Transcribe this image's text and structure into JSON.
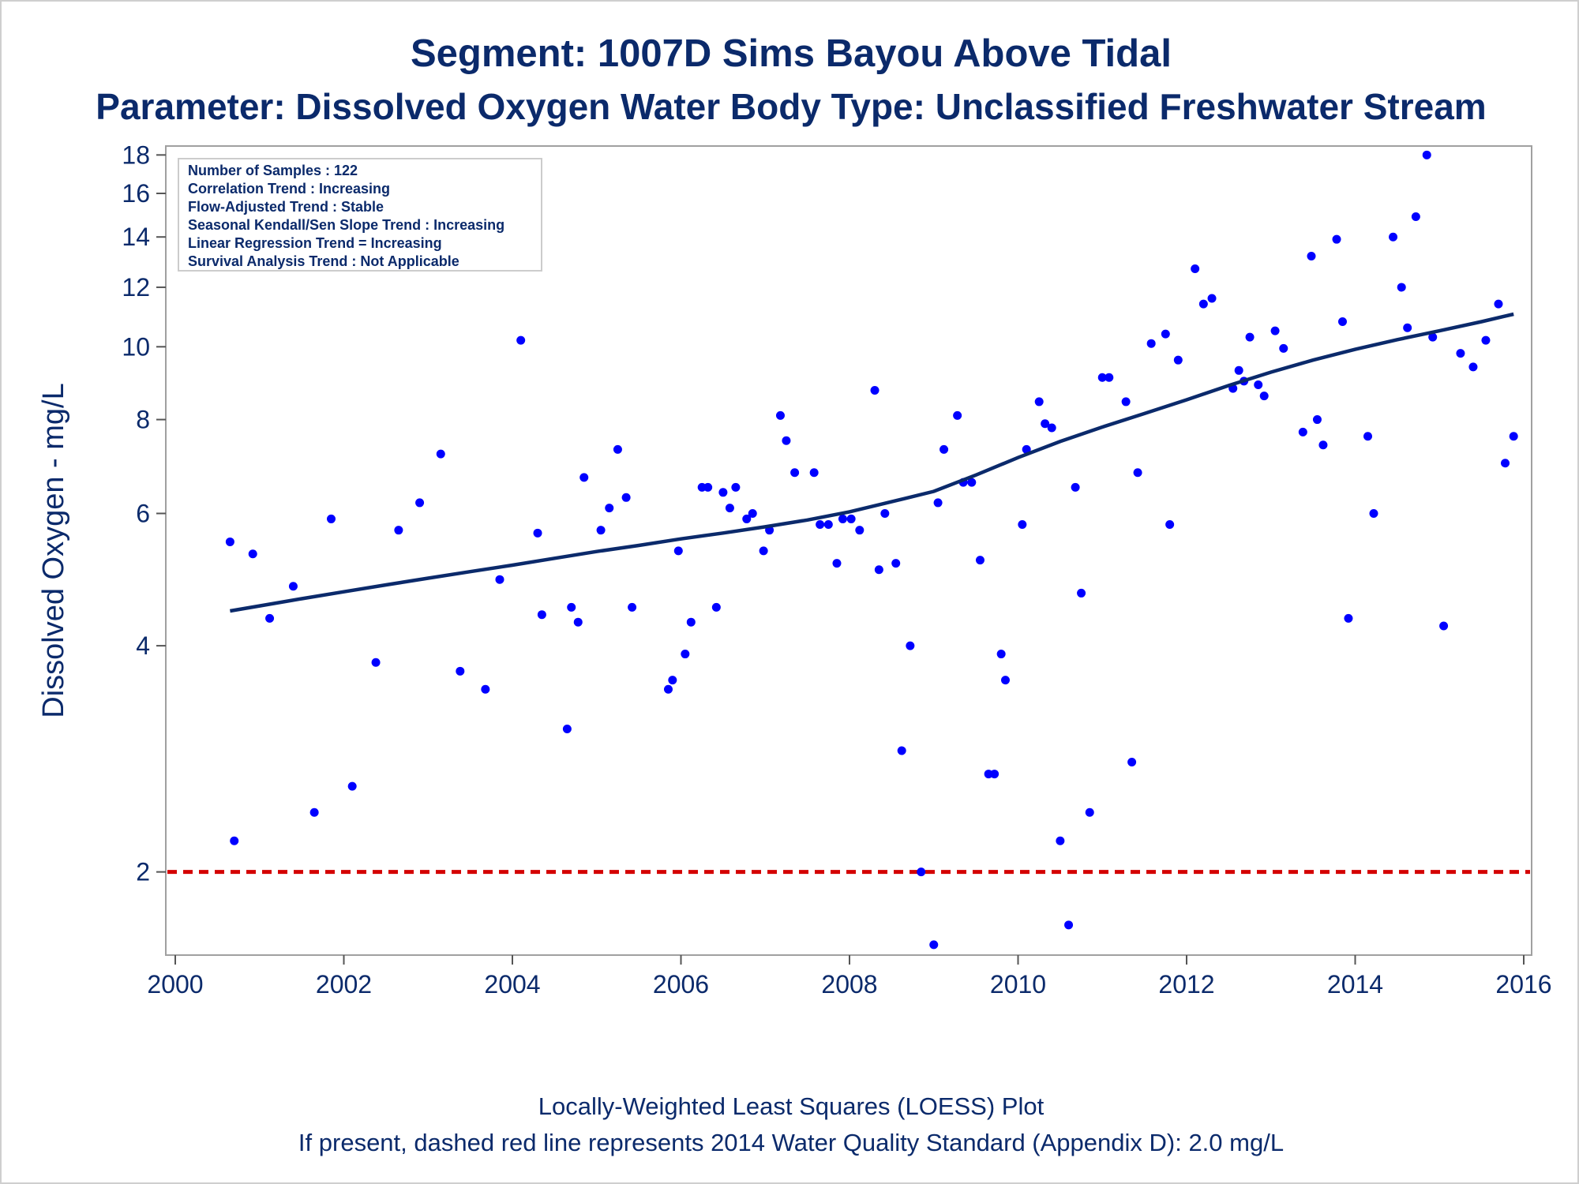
{
  "titles": {
    "line1": "Segment: 1007D  Sims Bayou Above Tidal",
    "line2": "Parameter: Dissolved Oxygen   Water Body Type: Unclassified Freshwater Stream"
  },
  "footnotes": {
    "line1": "Locally-Weighted Least Squares (LOESS) Plot",
    "line2": "If present, dashed red line represents 2014 Water Quality Standard (Appendix D): 2.0 mg/L"
  },
  "stats_box": [
    "Number of Samples : 122",
    "Correlation Trend : Increasing",
    "Flow-Adjusted Trend : Stable",
    "Seasonal Kendall/Sen Slope Trend : Increasing",
    "Linear Regression Trend = Increasing",
    "Survival Analysis Trend : Not Applicable"
  ],
  "colors": {
    "points": "#0000ff",
    "loess": "#0b2a6b",
    "standard": "#d40000",
    "text": "#0b2a6b",
    "frame": "#a0a0a0"
  },
  "chart_data": {
    "type": "scatter",
    "title": "Segment: 1007D  Sims Bayou Above Tidal",
    "subtitle": "Parameter: Dissolved Oxygen   Water Body Type: Unclassified Freshwater Stream",
    "xlabel": "",
    "ylabel": "Dissolved Oxygen - mg/L",
    "xlim": [
      2000,
      2016
    ],
    "ylim": [
      1.55,
      18.5
    ],
    "y_scale": "log",
    "x_ticks": [
      2000,
      2002,
      2004,
      2006,
      2008,
      2010,
      2012,
      2014,
      2016
    ],
    "y_ticks": [
      2,
      4,
      6,
      8,
      10,
      12,
      14,
      16,
      18
    ],
    "grid": false,
    "standard_line": {
      "y": 2.0,
      "style": "dashed"
    },
    "points": [
      [
        2000.65,
        5.5
      ],
      [
        2000.7,
        2.2
      ],
      [
        2000.92,
        5.3
      ],
      [
        2001.12,
        4.35
      ],
      [
        2001.4,
        4.8
      ],
      [
        2001.65,
        2.4
      ],
      [
        2001.85,
        5.9
      ],
      [
        2002.1,
        2.6
      ],
      [
        2002.38,
        3.8
      ],
      [
        2002.65,
        5.7
      ],
      [
        2002.9,
        6.2
      ],
      [
        2003.15,
        7.2
      ],
      [
        2003.38,
        3.7
      ],
      [
        2003.68,
        3.5
      ],
      [
        2003.85,
        4.9
      ],
      [
        2004.1,
        10.2
      ],
      [
        2004.3,
        5.65
      ],
      [
        2004.35,
        4.4
      ],
      [
        2004.65,
        3.1
      ],
      [
        2004.7,
        4.5
      ],
      [
        2004.78,
        4.3
      ],
      [
        2004.85,
        6.7
      ],
      [
        2005.05,
        5.7
      ],
      [
        2005.15,
        6.1
      ],
      [
        2005.25,
        7.3
      ],
      [
        2005.35,
        6.3
      ],
      [
        2005.42,
        4.5
      ],
      [
        2005.85,
        3.5
      ],
      [
        2005.9,
        3.6
      ],
      [
        2005.97,
        5.35
      ],
      [
        2006.05,
        3.9
      ],
      [
        2006.12,
        4.3
      ],
      [
        2006.25,
        6.5
      ],
      [
        2006.32,
        6.5
      ],
      [
        2006.42,
        4.5
      ],
      [
        2006.5,
        6.4
      ],
      [
        2006.58,
        6.1
      ],
      [
        2006.65,
        6.5
      ],
      [
        2006.78,
        5.9
      ],
      [
        2006.85,
        6.0
      ],
      [
        2006.98,
        5.35
      ],
      [
        2007.05,
        5.7
      ],
      [
        2007.18,
        8.1
      ],
      [
        2007.25,
        7.5
      ],
      [
        2007.35,
        6.8
      ],
      [
        2007.58,
        6.8
      ],
      [
        2007.65,
        5.8
      ],
      [
        2007.75,
        5.8
      ],
      [
        2007.85,
        5.15
      ],
      [
        2007.92,
        5.9
      ],
      [
        2008.02,
        5.9
      ],
      [
        2008.12,
        5.7
      ],
      [
        2008.3,
        8.75
      ],
      [
        2008.35,
        5.05
      ],
      [
        2008.42,
        6.0
      ],
      [
        2008.55,
        5.15
      ],
      [
        2008.62,
        2.9
      ],
      [
        2008.72,
        4.0
      ],
      [
        2008.85,
        2.0
      ],
      [
        2009.0,
        1.6
      ],
      [
        2009.05,
        6.2
      ],
      [
        2009.12,
        7.3
      ],
      [
        2009.28,
        8.1
      ],
      [
        2009.35,
        6.6
      ],
      [
        2009.45,
        6.6
      ],
      [
        2009.55,
        5.2
      ],
      [
        2009.65,
        2.7
      ],
      [
        2009.72,
        2.7
      ],
      [
        2009.8,
        3.9
      ],
      [
        2009.85,
        3.6
      ],
      [
        2010.05,
        5.8
      ],
      [
        2010.1,
        7.3
      ],
      [
        2010.25,
        8.45
      ],
      [
        2010.32,
        7.9
      ],
      [
        2010.4,
        7.8
      ],
      [
        2010.5,
        2.2
      ],
      [
        2010.6,
        1.7
      ],
      [
        2010.68,
        6.5
      ],
      [
        2010.75,
        4.7
      ],
      [
        2010.85,
        2.4
      ],
      [
        2011.0,
        9.1
      ],
      [
        2011.08,
        9.1
      ],
      [
        2011.28,
        8.45
      ],
      [
        2011.35,
        2.8
      ],
      [
        2011.42,
        6.8
      ],
      [
        2011.58,
        10.1
      ],
      [
        2011.75,
        10.4
      ],
      [
        2011.8,
        5.8
      ],
      [
        2011.9,
        9.6
      ],
      [
        2012.1,
        12.7
      ],
      [
        2012.2,
        11.4
      ],
      [
        2012.3,
        11.6
      ],
      [
        2012.55,
        8.8
      ],
      [
        2012.62,
        9.3
      ],
      [
        2012.68,
        9.0
      ],
      [
        2012.75,
        10.3
      ],
      [
        2012.85,
        8.9
      ],
      [
        2012.92,
        8.6
      ],
      [
        2013.05,
        10.5
      ],
      [
        2013.15,
        9.95
      ],
      [
        2013.38,
        7.7
      ],
      [
        2013.48,
        13.2
      ],
      [
        2013.55,
        8.0
      ],
      [
        2013.62,
        7.4
      ],
      [
        2013.78,
        13.9
      ],
      [
        2013.85,
        10.8
      ],
      [
        2013.92,
        4.35
      ],
      [
        2014.15,
        7.6
      ],
      [
        2014.22,
        6.0
      ],
      [
        2014.45,
        14.0
      ],
      [
        2014.55,
        12.0
      ],
      [
        2014.62,
        10.6
      ],
      [
        2014.72,
        14.9
      ],
      [
        2014.85,
        18.0
      ],
      [
        2014.92,
        10.3
      ],
      [
        2015.05,
        4.25
      ],
      [
        2015.25,
        9.8
      ],
      [
        2015.4,
        9.4
      ],
      [
        2015.55,
        10.2
      ],
      [
        2015.7,
        11.4
      ],
      [
        2015.78,
        7.0
      ],
      [
        2015.88,
        7.6
      ]
    ],
    "loess": [
      [
        2000.65,
        4.45
      ],
      [
        2001.0,
        4.52
      ],
      [
        2001.5,
        4.62
      ],
      [
        2002.0,
        4.72
      ],
      [
        2002.5,
        4.82
      ],
      [
        2003.0,
        4.92
      ],
      [
        2003.5,
        5.02
      ],
      [
        2004.0,
        5.12
      ],
      [
        2004.5,
        5.23
      ],
      [
        2005.0,
        5.34
      ],
      [
        2005.5,
        5.44
      ],
      [
        2006.0,
        5.55
      ],
      [
        2006.5,
        5.65
      ],
      [
        2007.0,
        5.76
      ],
      [
        2007.5,
        5.88
      ],
      [
        2008.0,
        6.03
      ],
      [
        2008.5,
        6.22
      ],
      [
        2009.0,
        6.42
      ],
      [
        2009.5,
        6.75
      ],
      [
        2010.0,
        7.12
      ],
      [
        2010.5,
        7.48
      ],
      [
        2011.0,
        7.82
      ],
      [
        2011.5,
        8.15
      ],
      [
        2012.0,
        8.5
      ],
      [
        2012.5,
        8.88
      ],
      [
        2013.0,
        9.25
      ],
      [
        2013.5,
        9.6
      ],
      [
        2014.0,
        9.92
      ],
      [
        2014.5,
        10.22
      ],
      [
        2015.0,
        10.5
      ],
      [
        2015.5,
        10.8
      ],
      [
        2015.88,
        11.05
      ]
    ]
  }
}
